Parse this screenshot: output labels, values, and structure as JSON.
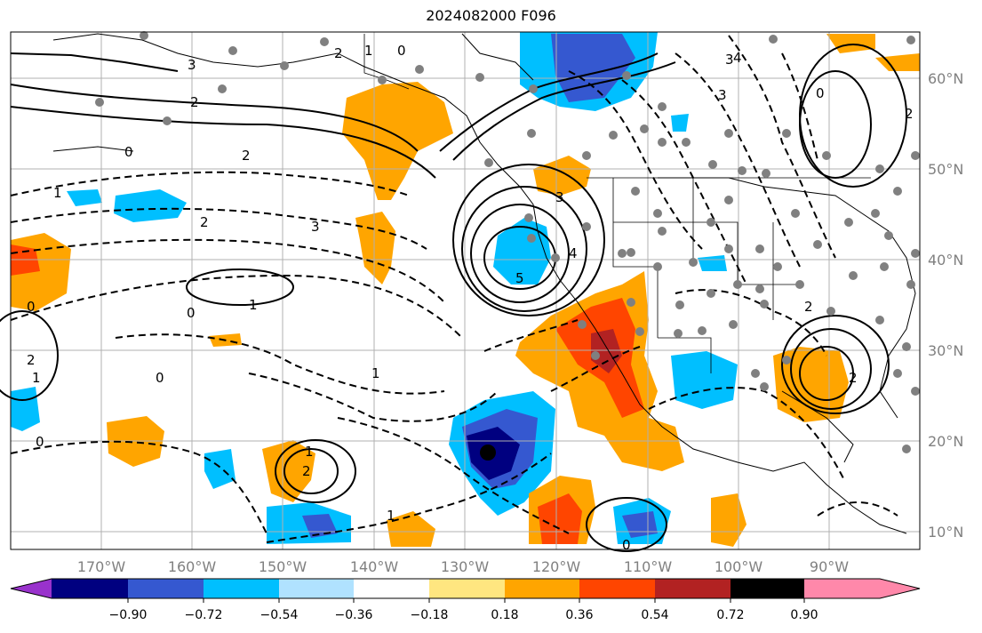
{
  "title": "2024082000 F096",
  "map": {
    "lon_labels": [
      "170°W",
      "160°W",
      "150°W",
      "140°W",
      "130°W",
      "120°W",
      "110°W",
      "100°W",
      "90°W"
    ],
    "lat_labels": [
      "60°N",
      "50°N",
      "40°N",
      "30°N",
      "20°N",
      "10°N"
    ]
  },
  "colorbar": {
    "colors": [
      "#9932cc",
      "#000080",
      "#3558d0",
      "#00bfff",
      "#b0e2ff",
      "#ffffff",
      "#ffe680",
      "#ffa500",
      "#ff4500",
      "#b22222",
      "#ff88aa"
    ],
    "ticks": [
      "−0.90",
      "−0.72",
      "−0.54",
      "−0.36",
      "−0.18",
      "0.18",
      "0.36",
      "0.54",
      "0.72",
      "0.90"
    ]
  },
  "contour_labels": [
    "3",
    "2",
    "0",
    "1",
    "0",
    "2",
    "3",
    "5",
    "4",
    "3",
    "0",
    "1",
    "2",
    "1",
    "2",
    "0",
    "1",
    "2",
    "1",
    "0",
    "0",
    "1",
    "2",
    "3",
    "4",
    "2",
    "0",
    "2",
    "2",
    "3",
    "1",
    "0"
  ]
}
